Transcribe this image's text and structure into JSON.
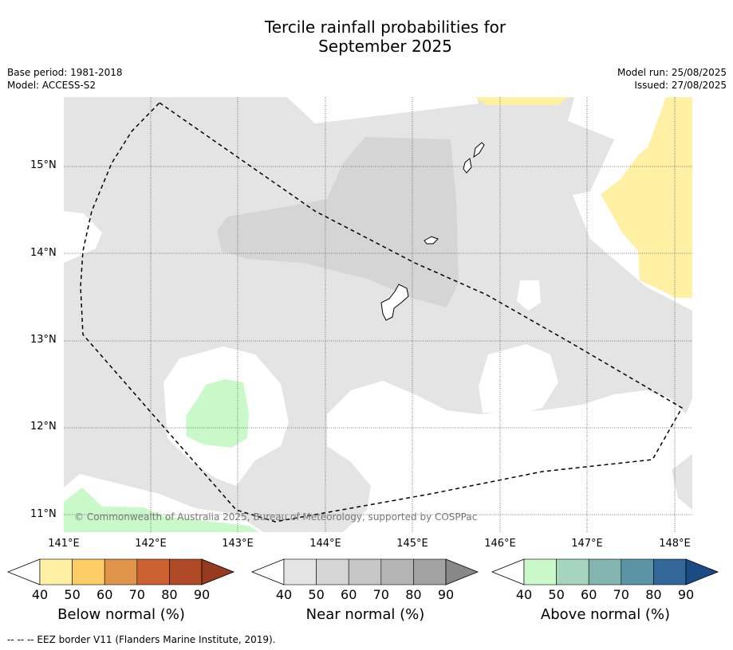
{
  "title_line1": "Tercile rainfall probabilities for",
  "title_line2": "September 2025",
  "meta_left": {
    "base_period": "Base period: 1981-2018",
    "model": "Model: ACCESS-S2"
  },
  "meta_right": {
    "model_run": "Model run: 25/08/2025",
    "issued": "Issued: 27/08/2025"
  },
  "lat_labels": [
    "15°N",
    "14°N",
    "13°N",
    "12°N",
    "11°N"
  ],
  "lon_labels": [
    "141°E",
    "142°E",
    "143°E",
    "144°E",
    "145°E",
    "146°E",
    "147°E",
    "148°E"
  ],
  "copyright": "© Commonwealth of Australia 2025, Bureau of Meteorology, supported by COSPPac",
  "colorbars": [
    {
      "label": "Below normal (%)",
      "ticks": [
        "40",
        "50",
        "60",
        "70",
        "80",
        "90"
      ],
      "colors": [
        "#fff0a3",
        "#fdcc64",
        "#e0944a",
        "#cc6232",
        "#b04a26",
        "#963a20"
      ]
    },
    {
      "label": "Near normal (%)",
      "ticks": [
        "40",
        "50",
        "60",
        "70",
        "80",
        "90"
      ],
      "colors": [
        "#e4e4e4",
        "#d5d5d5",
        "#c6c6c6",
        "#b4b4b4",
        "#a2a2a2",
        "#888888"
      ]
    },
    {
      "label": "Above normal (%)",
      "ticks": [
        "40",
        "50",
        "60",
        "70",
        "80",
        "90"
      ],
      "colors": [
        "#c9f9c9",
        "#a5d6bd",
        "#82b5b0",
        "#5b94a4",
        "#336699",
        "#1b4b84"
      ]
    }
  ],
  "footnote": "-- -- -- EEZ border V11 (Flanders Marine Institute, 2019).",
  "colors": {
    "near_normal_light": "#e4e4e4",
    "near_normal_mid": "#d5d5d5",
    "below_normal_light": "#fff0a3",
    "above_normal_light": "#c9f9c9"
  }
}
